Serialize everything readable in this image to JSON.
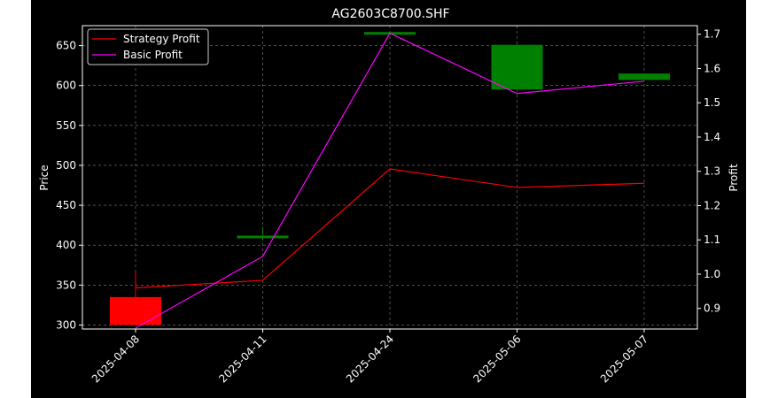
{
  "chart_data": {
    "type": "candlestick+line",
    "title": "AG2603C8700.SHF",
    "ylabel_left": "Price",
    "ylabel_right": "Profit",
    "categories": [
      "2025-04-08",
      "2025-04-11",
      "2025-04-24",
      "2025-05-06",
      "2025-05-07"
    ],
    "ylim_left": [
      295,
      675
    ],
    "yticks_left": [
      300,
      350,
      400,
      450,
      500,
      550,
      600,
      650
    ],
    "ylim_right": [
      0.84,
      1.725
    ],
    "yticks_right": [
      0.9,
      1.0,
      1.1,
      1.2,
      1.3,
      1.4,
      1.5,
      1.6,
      1.7
    ],
    "grid": true,
    "legend_position": "top-left",
    "candles": [
      {
        "date": "2025-04-08",
        "open": 335,
        "high": 367,
        "low": 300,
        "close": 300,
        "color": "#ff0000"
      },
      {
        "date": "2025-04-11",
        "open": 410,
        "high": 423,
        "low": 410,
        "close": 412,
        "color": "#008000"
      },
      {
        "date": "2025-04-24",
        "open": 664,
        "high": 667,
        "low": 664,
        "close": 667,
        "color": "#008000"
      },
      {
        "date": "2025-05-06",
        "open": 595,
        "high": 651,
        "low": 595,
        "close": 651,
        "color": "#008000"
      },
      {
        "date": "2025-05-07",
        "open": 607,
        "high": 615,
        "low": 607,
        "close": 615,
        "color": "#008000"
      }
    ],
    "series": [
      {
        "name": "Strategy Profit",
        "color": "#ff0000",
        "values": [
          0.96,
          0.982,
          1.307,
          1.253,
          1.265
        ]
      },
      {
        "name": "Basic Profit",
        "color": "#ff00ff",
        "values": [
          0.843,
          1.052,
          1.703,
          1.527,
          1.563
        ]
      }
    ]
  }
}
